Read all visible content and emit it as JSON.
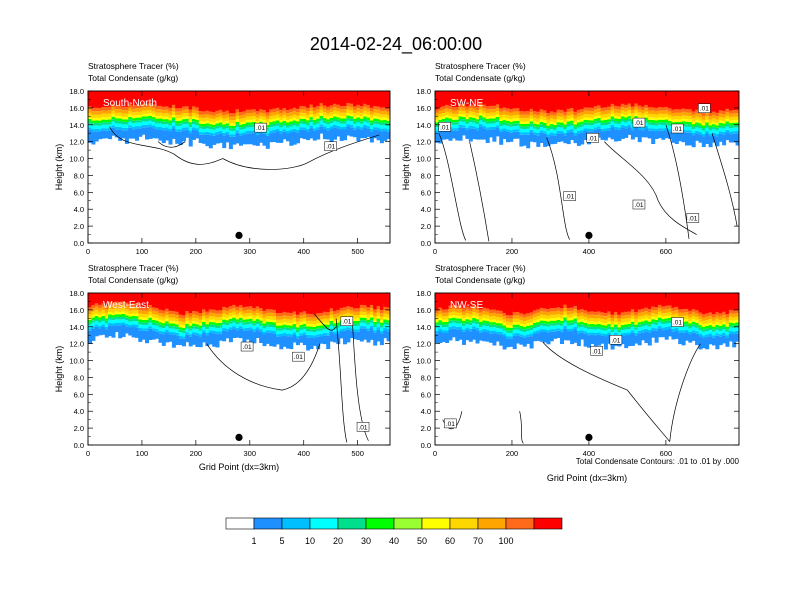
{
  "figure": {
    "title": "2014-02-24_06:00:00",
    "contour_info": "Total Condensate Contours: .01 to .01 by .000",
    "colorbar": {
      "colors": [
        "#ffffff",
        "#1e90ff",
        "#00bfff",
        "#00ffff",
        "#00e08c",
        "#00ff00",
        "#9aff32",
        "#ffff00",
        "#ffd700",
        "#ffa500",
        "#ff6a1a",
        "#ff0000"
      ],
      "labels": [
        "1",
        "5",
        "10",
        "20",
        "30",
        "40",
        "50",
        "60",
        "70",
        "100"
      ]
    }
  },
  "chart_data": [
    {
      "type": "heatmap",
      "title": "South-North",
      "line1": "Stratosphere Tracer   (%)",
      "line2": "Total Condensate   (g/kg)",
      "xlabel": "",
      "ylabel": "Height (km)",
      "xlim": [
        0,
        560
      ],
      "ylim": [
        0,
        18
      ],
      "xticks": [
        "0",
        "100",
        "200",
        "300",
        "400",
        "500"
      ],
      "xtickvals": [
        0,
        100,
        200,
        300,
        400,
        500
      ],
      "yticks": [
        "0.0",
        "2.0",
        "4.0",
        "6.0",
        "8.0",
        "10.0",
        "12.0",
        "14.0",
        "16.0",
        "18.0"
      ],
      "marker_x": 280,
      "contour_label": ".01",
      "contour_label_x": [
        320,
        450
      ],
      "contour_label_y": [
        13.6,
        11.4
      ]
    },
    {
      "type": "heatmap",
      "title": "SW-NE",
      "line1": "Stratosphere Tracer   (%)",
      "line2": "Total Condensate   (g/kg)",
      "xlabel": "",
      "ylabel": "Height (km)",
      "xlim": [
        0,
        790
      ],
      "ylim": [
        0,
        18
      ],
      "xticks": [
        "0",
        "200",
        "400",
        "600"
      ],
      "xtickvals": [
        0,
        200,
        400,
        600
      ],
      "yticks": [
        "0.0",
        "2.0",
        "4.0",
        "6.0",
        "8.0",
        "10.0",
        "12.0",
        "14.0",
        "16.0",
        "18.0"
      ],
      "marker_x": 400,
      "contour_label": ".01",
      "contour_label_x": [
        25,
        410,
        530,
        630,
        700,
        350,
        530,
        670
      ],
      "contour_label_y": [
        13.7,
        12.4,
        14.2,
        13.5,
        15.9,
        5.5,
        4.5,
        2.9
      ]
    },
    {
      "type": "heatmap",
      "title": "West-East",
      "line1": "Stratosphere Tracer   (%)",
      "line2": "Total Condensate   (g/kg)",
      "xlabel": "Grid Point (dx=3km)",
      "ylabel": "Height (km)",
      "xlim": [
        0,
        560
      ],
      "ylim": [
        0,
        18
      ],
      "xticks": [
        "0",
        "100",
        "200",
        "300",
        "400",
        "500"
      ],
      "xtickvals": [
        0,
        100,
        200,
        300,
        400,
        500
      ],
      "yticks": [
        "0.0",
        "2.0",
        "4.0",
        "6.0",
        "8.0",
        "10.0",
        "12.0",
        "14.0",
        "16.0",
        "18.0"
      ],
      "marker_x": 280,
      "contour_label": ".01",
      "contour_label_x": [
        480,
        295,
        390,
        510
      ],
      "contour_label_y": [
        14.6,
        11.6,
        10.4,
        2.1
      ]
    },
    {
      "type": "heatmap",
      "title": "NW-SE",
      "line1": "Stratosphere Tracer   (%)",
      "line2": "Total Condensate   (g/kg)",
      "xlabel": "Grid Point (dx=3km)",
      "ylabel": "Height (km)",
      "xlim": [
        0,
        790
      ],
      "ylim": [
        0,
        18
      ],
      "xticks": [
        "0",
        "200",
        "400",
        "600"
      ],
      "xtickvals": [
        0,
        200,
        400,
        600
      ],
      "yticks": [
        "0.0",
        "2.0",
        "4.0",
        "6.0",
        "8.0",
        "10.0",
        "12.0",
        "14.0",
        "16.0",
        "18.0"
      ],
      "marker_x": 400,
      "contour_label": ".01",
      "contour_label_x": [
        630,
        420,
        470,
        40
      ],
      "contour_label_y": [
        14.5,
        11.1,
        12.4,
        2.5
      ]
    }
  ]
}
